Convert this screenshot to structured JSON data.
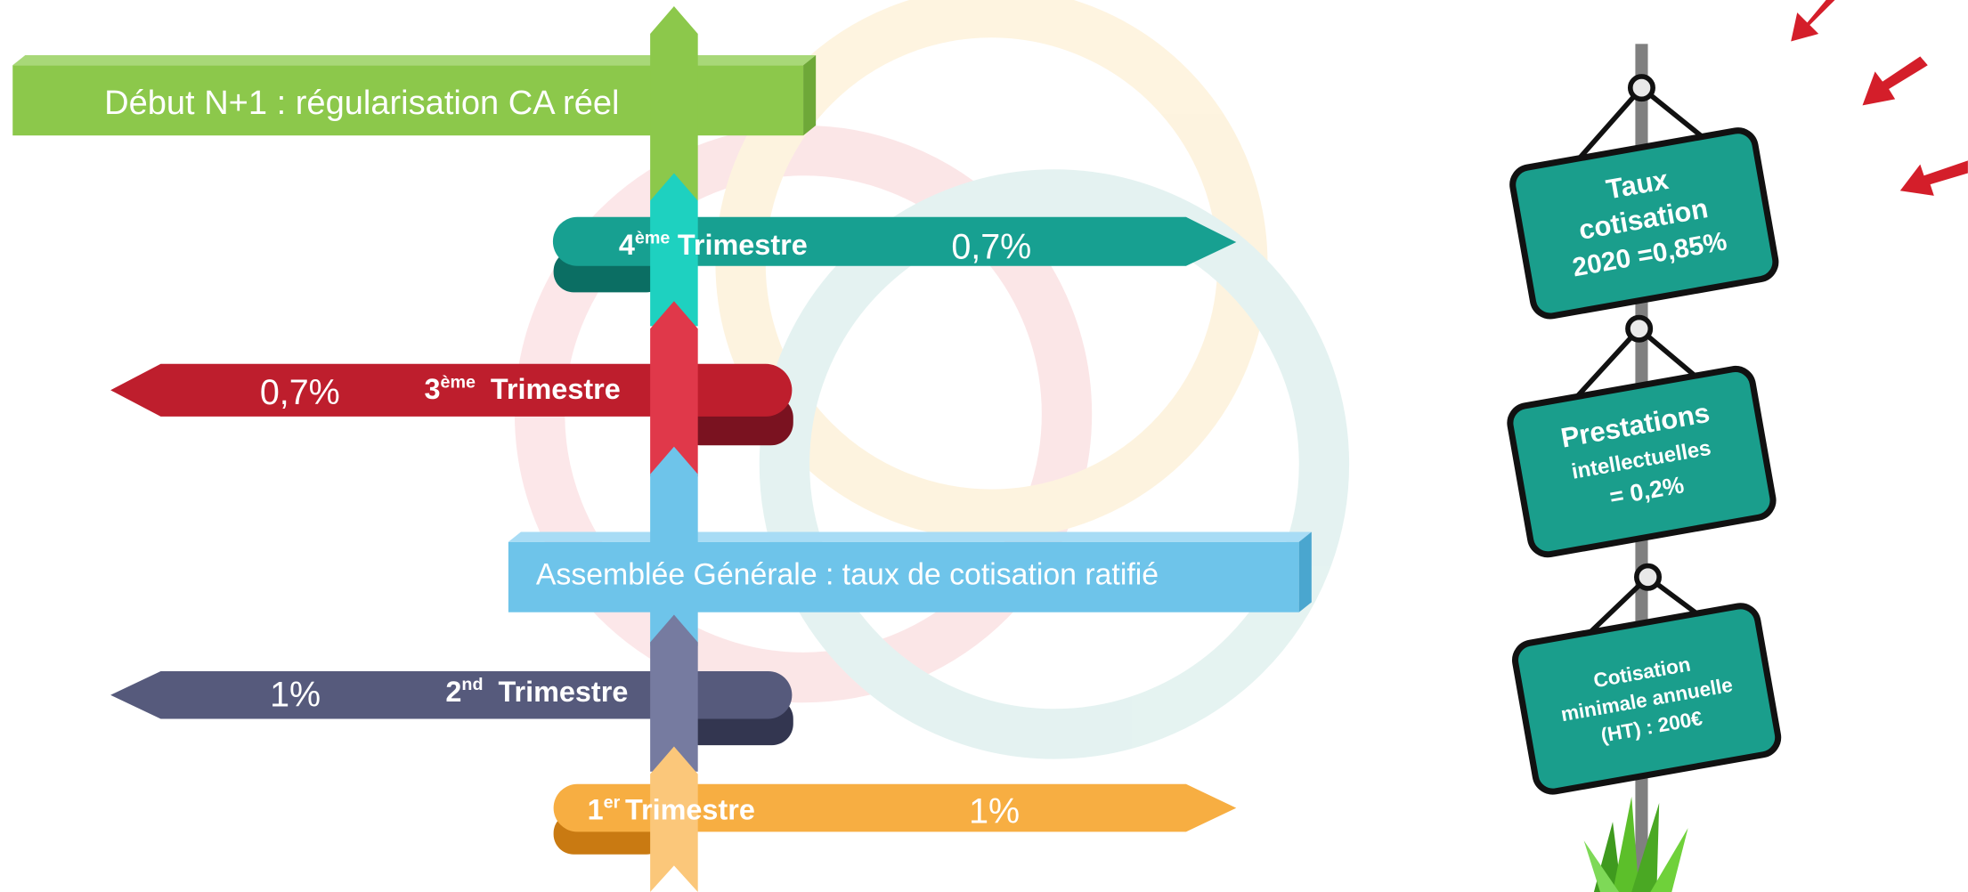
{
  "header": {
    "title": "Début N+1 : régularisation CA réel"
  },
  "quarters": [
    {
      "ordinal": "4",
      "suffix": "ème",
      "label": "Trimestre",
      "rate": "0,7%"
    },
    {
      "ordinal": "3",
      "suffix": "ème",
      "label": "Trimestre",
      "rate": "0,7%"
    },
    {
      "ordinal": "2",
      "suffix": "nd",
      "label": "Trimestre",
      "rate": "1%"
    },
    {
      "ordinal": "1",
      "suffix": "er",
      "label": "Trimestre",
      "rate": "1%"
    }
  ],
  "milestone": "Assemblée Générale : taux de cotisation ratifié",
  "signs": [
    {
      "lines": [
        "Taux",
        "cotisation",
        "2020 =0,85%"
      ]
    },
    {
      "lines": [
        "Prestations",
        "intellectuelles",
        "= 0,2%"
      ]
    },
    {
      "lines": [
        "Cotisation",
        "minimale annuelle",
        "(HT) : 200€"
      ]
    }
  ]
}
